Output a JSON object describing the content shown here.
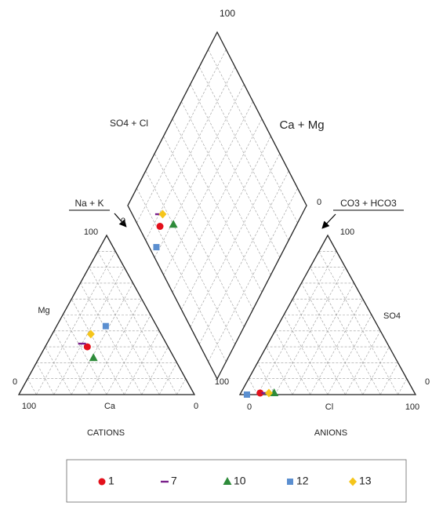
{
  "chart_data": {
    "type": "piper",
    "annotations": [
      "100",
      "SO4 + Cl",
      "Ca + Mg",
      "Na + K",
      "0",
      "CO3 + HCO3",
      "0",
      "100",
      "Mg",
      "0",
      "100",
      "Ca",
      "0",
      "CATIONS",
      "100",
      "SO4",
      "0",
      "100",
      "0",
      "Cl",
      "100",
      "ANIONS"
    ],
    "series": [
      {
        "name": "1",
        "color": "#e3101b",
        "marker": "circle",
        "cations": {
          "Ca": 46,
          "Mg": 30
        },
        "anions": {
          "Cl": 11,
          "SO4": 1
        }
      },
      {
        "name": "7",
        "color": "#7a1f8a",
        "marker": "dash",
        "cations": {
          "Ca": 48,
          "Mg": 32
        },
        "anions": {
          "Cl": 14,
          "SO4": 1
        }
      },
      {
        "name": "10",
        "color": "#2e8b3a",
        "marker": "triangle",
        "cations": {
          "Ca": 46,
          "Mg": 23
        },
        "anions": {
          "Cl": 19,
          "SO4": 1
        }
      },
      {
        "name": "12",
        "color": "#5b8fd0",
        "marker": "square",
        "cations": {
          "Ca": 29,
          "Mg": 43
        },
        "anions": {
          "Cl": 4,
          "SO4": 0
        }
      },
      {
        "name": "13",
        "color": "#f5c51a",
        "marker": "diamond",
        "cations": {
          "Ca": 40,
          "Mg": 38
        },
        "anions": {
          "Cl": 16,
          "SO4": 1
        }
      }
    ]
  }
}
